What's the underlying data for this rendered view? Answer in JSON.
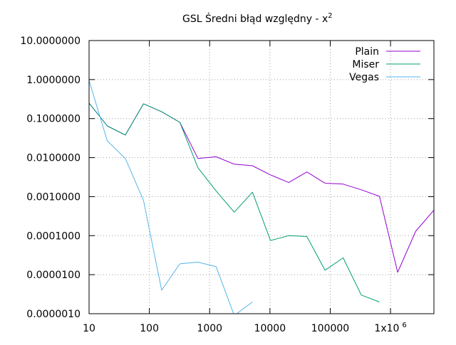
{
  "chart_data": {
    "type": "line",
    "title": "GSL Średni błąd względny - x",
    "title_superscript": "2",
    "xlabel": "",
    "ylabel": "",
    "x_scale": "log",
    "y_scale": "log",
    "xlim": [
      10,
      5242880
    ],
    "ylim": [
      1e-06,
      10
    ],
    "grid": true,
    "grid_style": "dotted",
    "legend_position": "top-right",
    "x_ticks": [
      {
        "value": 10,
        "label": "10"
      },
      {
        "value": 100,
        "label": "100"
      },
      {
        "value": 1000,
        "label": "1000"
      },
      {
        "value": 10000,
        "label": "10000"
      },
      {
        "value": 100000,
        "label": "100000"
      },
      {
        "value": 1000000,
        "label": "1x10",
        "superscript": "6"
      }
    ],
    "y_ticks": [
      {
        "value": 10,
        "label": "10.0000000"
      },
      {
        "value": 1,
        "label": "1.0000000"
      },
      {
        "value": 0.1,
        "label": "0.1000000"
      },
      {
        "value": 0.01,
        "label": "0.0100000"
      },
      {
        "value": 0.001,
        "label": "0.0010000"
      },
      {
        "value": 0.0001,
        "label": "0.0001000"
      },
      {
        "value": 1e-05,
        "label": "0.0000100"
      },
      {
        "value": 1e-06,
        "label": "0.0000010"
      }
    ],
    "series": [
      {
        "name": "Plain",
        "color": "#9400d3",
        "x": [
          10,
          20,
          40,
          80,
          160,
          320,
          640,
          1280,
          2560,
          5120,
          10240,
          20480,
          40960,
          81920,
          163840,
          327680,
          655360,
          1310720,
          2621440,
          5242880
        ],
        "y": [
          0.25,
          0.065,
          0.038,
          0.24,
          0.15,
          0.08,
          0.0095,
          0.0105,
          0.0068,
          0.0062,
          0.0036,
          0.0023,
          0.0043,
          0.0022,
          0.0021,
          0.0015,
          0.00102,
          1.15e-05,
          0.00013,
          0.00045
        ]
      },
      {
        "name": "Miser",
        "color": "#009e73",
        "x": [
          10,
          20,
          40,
          80,
          160,
          320,
          640,
          1280,
          2560,
          5120,
          10240,
          20480,
          40960,
          81920,
          163840,
          327680,
          655360
        ],
        "y": [
          0.25,
          0.065,
          0.038,
          0.24,
          0.15,
          0.08,
          0.0055,
          0.0014,
          0.0004,
          0.0013,
          7.5e-05,
          0.0001,
          9.5e-05,
          1.3e-05,
          2.7e-05,
          3e-06,
          2e-06
        ]
      },
      {
        "name": "Vegas",
        "color": "#56b4e9",
        "x": [
          10,
          20,
          40,
          80,
          160,
          320,
          640,
          1280,
          2560,
          5120
        ],
        "y": [
          0.95,
          0.027,
          0.0095,
          0.0008,
          4e-06,
          1.9e-05,
          2.1e-05,
          1.6e-05,
          9e-07,
          2e-06
        ]
      }
    ]
  }
}
